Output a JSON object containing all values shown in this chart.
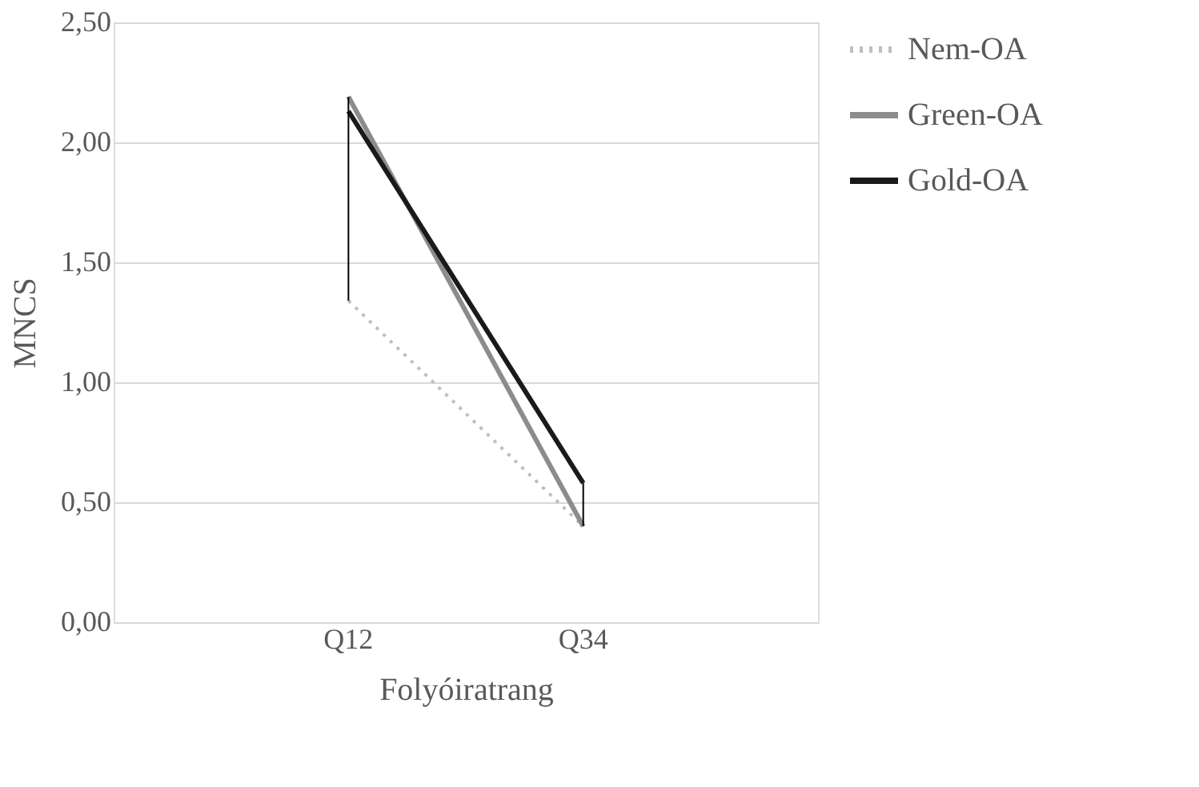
{
  "chart_data": {
    "type": "line",
    "xlabel": "Folyóiratrang",
    "ylabel": "MNCS",
    "categories": [
      "Q12",
      "Q34"
    ],
    "series": [
      {
        "name": "Nem-OA",
        "color": "#bfbfbf",
        "values": [
          1.34,
          0.4
        ],
        "line_style": "dotted",
        "errors": [
          [
            1.34,
            2.19
          ],
          [
            0.4,
            0.58
          ]
        ]
      },
      {
        "name": "Green-OA",
        "color": "#8c8c8c",
        "values": [
          2.19,
          0.4
        ],
        "line_style": "solid"
      },
      {
        "name": "Gold-OA",
        "color": "#1a1a1a",
        "values": [
          2.13,
          0.58
        ],
        "line_style": "solid"
      }
    ],
    "ylim": [
      0,
      2.5
    ],
    "yticks": [
      {
        "value": 0,
        "label": "0,00"
      },
      {
        "value": 0.5,
        "label": "0,50"
      },
      {
        "value": 1,
        "label": "1,00"
      },
      {
        "value": 1.5,
        "label": "1,50"
      },
      {
        "value": 2,
        "label": "2,00"
      },
      {
        "value": 2.5,
        "label": "2,50"
      }
    ],
    "grid": "y",
    "legend": "right",
    "marker": "none"
  }
}
